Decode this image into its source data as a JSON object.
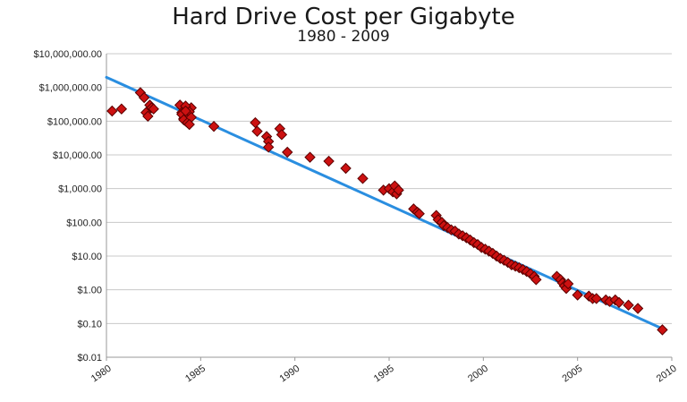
{
  "chart_data": {
    "type": "scatter",
    "title": "Hard Drive Cost per Gigabyte",
    "subtitle": "1980 - 2009",
    "xlabel": "",
    "ylabel": "",
    "xlim": [
      1980,
      2010
    ],
    "ylim": [
      0.01,
      10000000
    ],
    "y_scale": "log",
    "grid": "horizontal",
    "legend": "none",
    "colors": {
      "points": "#cc1111",
      "point_edge": "#5a0000",
      "trend": "#2a8ee0",
      "grid": "#c8c8c8"
    },
    "x_ticks": [
      "1980",
      "1985",
      "1990",
      "1995",
      "2000",
      "2005",
      "2010"
    ],
    "y_ticks": [
      "$10,000,000.00",
      "$1,000,000.00",
      "$100,000.00",
      "$10,000.00",
      "$1,000.00",
      "$100.00",
      "$10.00",
      "$1.00",
      "$0.10",
      "$0.01"
    ],
    "y_tick_values": [
      10000000,
      1000000,
      100000,
      10000,
      1000,
      100,
      10,
      1,
      0.1,
      0.01
    ],
    "trendline": {
      "x": [
        1980,
        2009.5
      ],
      "y": [
        2000000,
        0.07
      ]
    },
    "series": [
      {
        "x": [
          1980.3,
          1980.8,
          1981.8,
          1982.0,
          1982.1,
          1982.2,
          1982.3,
          1982.4,
          1982.5,
          1983.9,
          1984.0,
          1984.1,
          1984.2,
          1984.3,
          1984.4,
          1984.5,
          1984.0,
          1984.2,
          1984.4,
          1984.1,
          1984.3,
          1984.5,
          1984.2,
          1984.4,
          1985.7,
          1987.9,
          1988.0,
          1988.5,
          1988.6,
          1988.6,
          1989.2,
          1989.3,
          1989.6,
          1990.8,
          1991.8,
          1992.7,
          1993.6,
          1994.7,
          1995.0,
          1995.2,
          1995.3,
          1995.4,
          1995.5,
          1996.3,
          1996.5,
          1996.6,
          1997.5,
          1997.6,
          1997.8,
          1997.9,
          1998.1,
          1998.3,
          1998.5,
          1998.7,
          1998.9,
          1999.1,
          1999.3,
          1999.5,
          1999.7,
          1999.9,
          2000.1,
          2000.3,
          2000.5,
          2000.7,
          2000.9,
          2001.1,
          2001.3,
          2001.5,
          2001.7,
          2001.9,
          2002.1,
          2002.3,
          2002.5,
          2002.7,
          2002.8,
          2003.9,
          2004.1,
          2004.2,
          2004.3,
          2004.4,
          2004.5,
          2005.0,
          2005.6,
          2005.8,
          2006.0,
          2006.5,
          2006.7,
          2007.0,
          2007.2,
          2007.7,
          2008.2,
          2009.5
        ],
        "y": [
          200000,
          230000,
          700000,
          500000,
          180000,
          140000,
          300000,
          250000,
          230000,
          300000,
          180000,
          120000,
          100000,
          150000,
          220000,
          250000,
          160000,
          280000,
          190000,
          110000,
          90000,
          130000,
          200000,
          80000,
          70000,
          90000,
          50000,
          35000,
          25000,
          17000,
          60000,
          40000,
          12000,
          8500,
          6500,
          4000,
          2000,
          900,
          1000,
          800,
          1200,
          700,
          900,
          250,
          200,
          180,
          160,
          120,
          100,
          80,
          70,
          60,
          55,
          45,
          40,
          35,
          30,
          25,
          22,
          18,
          16,
          14,
          12,
          10,
          8.5,
          7.5,
          6.5,
          5.5,
          5.0,
          4.5,
          4.0,
          3.5,
          3.0,
          2.5,
          2.0,
          2.5,
          2.0,
          1.6,
          1.3,
          1.1,
          1.5,
          0.7,
          0.65,
          0.55,
          0.55,
          0.5,
          0.45,
          0.5,
          0.42,
          0.35,
          0.28,
          0.065
        ]
      }
    ]
  }
}
